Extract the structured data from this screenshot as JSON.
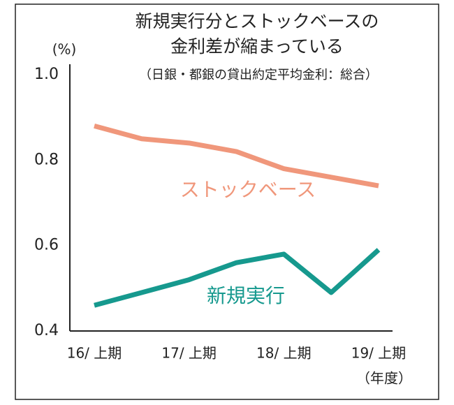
{
  "chart_data": {
    "type": "line",
    "title": [
      "新規実行分とストックベースの",
      "金利差が縮まっている"
    ],
    "subtitle": "（日銀・都銀の貸出約定平均金利：総合）",
    "y_label": "(%)",
    "x_label": "（年度）",
    "categories": [
      "16/ 上期",
      null,
      "17/ 上期",
      null,
      "18/ 上期",
      null,
      "19/ 上期"
    ],
    "series": [
      {
        "name": "ストックベース",
        "color": "#f0977b",
        "values": [
          0.88,
          0.85,
          0.84,
          0.82,
          0.78,
          0.76,
          0.74
        ]
      },
      {
        "name": "新規実行",
        "color": "#16998e",
        "values": [
          0.46,
          0.49,
          0.52,
          0.56,
          0.58,
          0.49,
          0.59
        ]
      }
    ],
    "ylim": [
      0.4,
      1.0
    ],
    "yticks": [
      0.4,
      0.6,
      0.8,
      {
        "value": 1.0,
        "label": "1.0"
      }
    ],
    "grid": false
  }
}
